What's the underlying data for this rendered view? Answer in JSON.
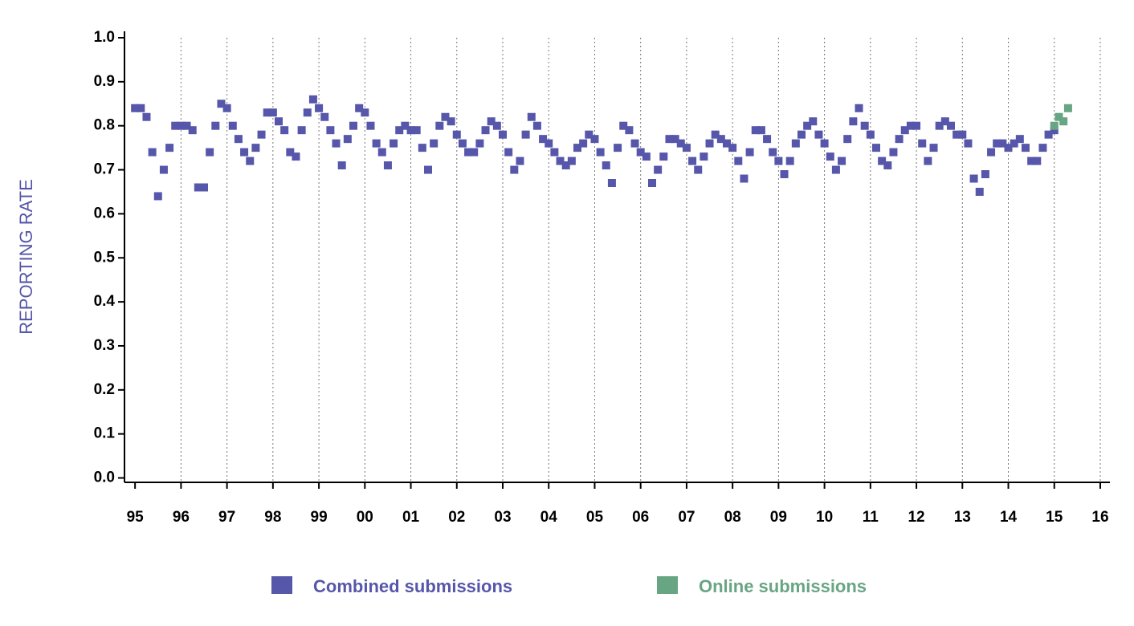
{
  "chart_data": {
    "type": "scatter",
    "y_label": "REPORTING RATE",
    "xlim": [
      1994.77,
      2016.21
    ],
    "ylim": [
      -0.01,
      1.0
    ],
    "xticks": [
      {
        "value": 1995,
        "label": "95"
      },
      {
        "value": 1996,
        "label": "96"
      },
      {
        "value": 1997,
        "label": "97"
      },
      {
        "value": 1998,
        "label": "98"
      },
      {
        "value": 1999,
        "label": "99"
      },
      {
        "value": 2000,
        "label": "00"
      },
      {
        "value": 2001,
        "label": "01"
      },
      {
        "value": 2002,
        "label": "02"
      },
      {
        "value": 2003,
        "label": "03"
      },
      {
        "value": 2004,
        "label": "04"
      },
      {
        "value": 2005,
        "label": "05"
      },
      {
        "value": 2006,
        "label": "06"
      },
      {
        "value": 2007,
        "label": "07"
      },
      {
        "value": 2008,
        "label": "08"
      },
      {
        "value": 2009,
        "label": "09"
      },
      {
        "value": 2010,
        "label": "10"
      },
      {
        "value": 2011,
        "label": "11"
      },
      {
        "value": 2012,
        "label": "12"
      },
      {
        "value": 2013,
        "label": "13"
      },
      {
        "value": 2014,
        "label": "14"
      },
      {
        "value": 2015,
        "label": "15"
      },
      {
        "value": 2016,
        "label": "16"
      }
    ],
    "yticks": [
      {
        "value": 0,
        "label": "0.0"
      },
      0.1,
      0.2,
      0.3,
      0.4,
      0.5,
      0.6,
      0.7,
      0.8,
      0.9,
      {
        "value": 1,
        "label": "1.0"
      }
    ],
    "xgrid": true,
    "series": [
      {
        "name": "Combined submissions",
        "color": "#5656aa",
        "x": [
          1995,
          1995.125,
          1995.25,
          1995.375,
          1995.5,
          1995.625,
          1995.75,
          1995.875,
          1996,
          1996.125,
          1996.25,
          1996.375,
          1996.5,
          1996.625,
          1996.75,
          1996.875,
          1997,
          1997.125,
          1997.25,
          1997.375,
          1997.5,
          1997.625,
          1997.75,
          1997.875,
          1998,
          1998.125,
          1998.25,
          1998.375,
          1998.5,
          1998.625,
          1998.75,
          1998.875,
          1999,
          1999.125,
          1999.25,
          1999.375,
          1999.5,
          1999.625,
          1999.75,
          1999.875,
          2000,
          2000.125,
          2000.25,
          2000.375,
          2000.5,
          2000.625,
          2000.75,
          2000.875,
          2001,
          2001.125,
          2001.25,
          2001.375,
          2001.5,
          2001.625,
          2001.75,
          2001.875,
          2002,
          2002.125,
          2002.25,
          2002.375,
          2002.5,
          2002.625,
          2002.75,
          2002.875,
          2003,
          2003.125,
          2003.25,
          2003.375,
          2003.5,
          2003.625,
          2003.75,
          2003.875,
          2004,
          2004.125,
          2004.25,
          2004.375,
          2004.5,
          2004.625,
          2004.75,
          2004.875,
          2005,
          2005.125,
          2005.25,
          2005.375,
          2005.5,
          2005.625,
          2005.75,
          2005.875,
          2006,
          2006.125,
          2006.25,
          2006.375,
          2006.5,
          2006.625,
          2006.75,
          2006.875,
          2007,
          2007.125,
          2007.25,
          2007.375,
          2007.5,
          2007.625,
          2007.75,
          2007.875,
          2008,
          2008.125,
          2008.25,
          2008.375,
          2008.5,
          2008.625,
          2008.75,
          2008.875,
          2009,
          2009.125,
          2009.25,
          2009.375,
          2009.5,
          2009.625,
          2009.75,
          2009.875,
          2010,
          2010.125,
          2010.25,
          2010.375,
          2010.5,
          2010.625,
          2010.75,
          2010.875,
          2011,
          2011.125,
          2011.25,
          2011.375,
          2011.5,
          2011.625,
          2011.75,
          2011.875,
          2012,
          2012.125,
          2012.25,
          2012.375,
          2012.5,
          2012.625,
          2012.75,
          2012.875,
          2013,
          2013.125,
          2013.25,
          2013.375,
          2013.5,
          2013.625,
          2013.75,
          2013.875,
          2014,
          2014.125,
          2014.25,
          2014.375,
          2014.5,
          2014.625,
          2014.75,
          2014.875,
          2015
        ],
        "values": [
          0.84,
          0.84,
          0.82,
          0.74,
          0.64,
          0.7,
          0.75,
          0.8,
          0.8,
          0.8,
          0.79,
          0.66,
          0.66,
          0.74,
          0.8,
          0.85,
          0.84,
          0.8,
          0.77,
          0.74,
          0.72,
          0.75,
          0.78,
          0.83,
          0.83,
          0.81,
          0.79,
          0.74,
          0.73,
          0.79,
          0.83,
          0.86,
          0.84,
          0.82,
          0.79,
          0.76,
          0.71,
          0.77,
          0.8,
          0.84,
          0.83,
          0.8,
          0.76,
          0.74,
          0.71,
          0.76,
          0.79,
          0.8,
          0.79,
          0.79,
          0.75,
          0.7,
          0.76,
          0.8,
          0.82,
          0.81,
          0.78,
          0.76,
          0.74,
          0.74,
          0.76,
          0.79,
          0.81,
          0.8,
          0.78,
          0.74,
          0.7,
          0.72,
          0.78,
          0.82,
          0.8,
          0.77,
          0.76,
          0.74,
          0.72,
          0.71,
          0.72,
          0.75,
          0.76,
          0.78,
          0.77,
          0.74,
          0.71,
          0.67,
          0.75,
          0.8,
          0.79,
          0.76,
          0.74,
          0.73,
          0.67,
          0.7,
          0.73,
          0.77,
          0.77,
          0.76,
          0.75,
          0.72,
          0.7,
          0.73,
          0.76,
          0.78,
          0.77,
          0.76,
          0.75,
          0.72,
          0.68,
          0.74,
          0.79,
          0.79,
          0.77,
          0.74,
          0.72,
          0.69,
          0.72,
          0.76,
          0.78,
          0.8,
          0.81,
          0.78,
          0.76,
          0.73,
          0.7,
          0.72,
          0.77,
          0.81,
          0.84,
          0.8,
          0.78,
          0.75,
          0.72,
          0.71,
          0.74,
          0.77,
          0.79,
          0.8,
          0.8,
          0.76,
          0.72,
          0.75,
          0.8,
          0.81,
          0.8,
          0.78,
          0.78,
          0.76,
          0.68,
          0.65,
          0.69,
          0.74,
          0.76,
          0.76,
          0.75,
          0.76,
          0.77,
          0.75,
          0.72,
          0.72,
          0.75,
          0.78,
          0.79
        ]
      },
      {
        "name": "Online submissions",
        "color": "#68a582",
        "x": [
          2015,
          2015.1,
          2015.2,
          2015.3
        ],
        "values": [
          0.8,
          0.82,
          0.81,
          0.84
        ]
      }
    ]
  }
}
